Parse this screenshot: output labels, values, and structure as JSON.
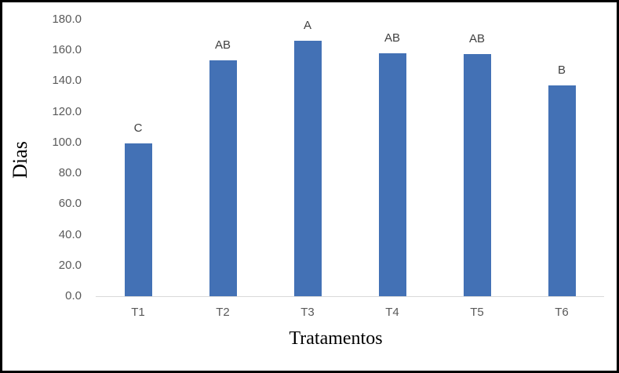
{
  "chart_data": {
    "type": "bar",
    "title": "",
    "categories": [
      "T1",
      "T2",
      "T3",
      "T4",
      "T5",
      "T6"
    ],
    "values": [
      99.4,
      153.5,
      166.2,
      158.1,
      157.6,
      137.2
    ],
    "bar_letter_labels": [
      "C",
      "AB",
      "A",
      "AB",
      "AB",
      "B"
    ],
    "xlabel": "Tratamentos",
    "ylabel": "Dias",
    "ylim": [
      0,
      180
    ],
    "ytick_step": 20,
    "ytick_labels": [
      "180.0",
      "160.0",
      "140.0",
      "120.0",
      "100.0",
      "80.0",
      "60.0",
      "40.0",
      "20.0",
      "0.0"
    ],
    "grid": false,
    "legend": "none",
    "colors": {
      "bar": "#4371b5",
      "axis_line": "#d9d9d9",
      "tick_labels": "#595959",
      "bar_letter_labels": "#404040",
      "axis_titles": "#000000",
      "frame_border": "#000000",
      "background": "#ffffff"
    }
  }
}
